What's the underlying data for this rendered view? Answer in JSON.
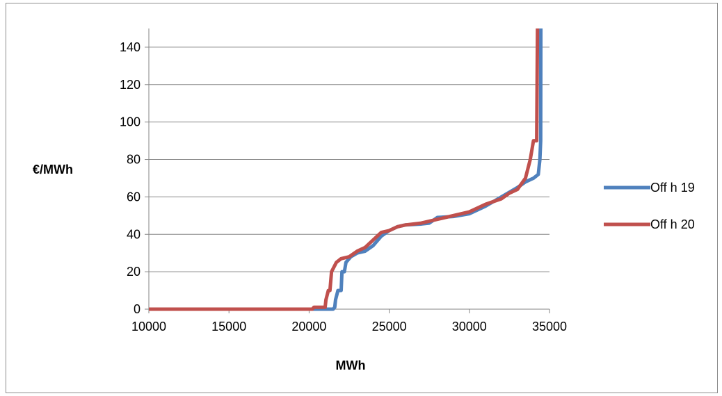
{
  "chart_data": {
    "type": "line",
    "title": "",
    "xlabel": "MWh",
    "ylabel": "€/MWh",
    "xlim": [
      10000,
      35000
    ],
    "ylim": [
      0,
      150
    ],
    "x_ticks": [
      "10000",
      "15000",
      "20000",
      "25000",
      "30000",
      "35000"
    ],
    "y_ticks": [
      "0",
      "20",
      "40",
      "60",
      "80",
      "100",
      "120",
      "140"
    ],
    "grid": "horizontal",
    "legend_position": "right",
    "series": [
      {
        "name": "Off h 19",
        "color": "#4f81bd",
        "points": [
          [
            10000,
            0
          ],
          [
            21500,
            0
          ],
          [
            21600,
            1
          ],
          [
            21650,
            5
          ],
          [
            21800,
            10
          ],
          [
            22000,
            10
          ],
          [
            22050,
            20
          ],
          [
            22200,
            20
          ],
          [
            22300,
            25
          ],
          [
            22600,
            28
          ],
          [
            23000,
            30
          ],
          [
            23500,
            31
          ],
          [
            24000,
            34
          ],
          [
            24500,
            39
          ],
          [
            25000,
            42
          ],
          [
            25500,
            44
          ],
          [
            26000,
            45
          ],
          [
            27000,
            45.5
          ],
          [
            27500,
            46
          ],
          [
            28000,
            49
          ],
          [
            29000,
            49.5
          ],
          [
            30000,
            51
          ],
          [
            31000,
            55
          ],
          [
            32000,
            60
          ],
          [
            33000,
            65
          ],
          [
            33500,
            68
          ],
          [
            34000,
            70
          ],
          [
            34300,
            72
          ],
          [
            34400,
            80
          ],
          [
            34450,
            90
          ],
          [
            34460,
            150
          ]
        ]
      },
      {
        "name": "Off h 20",
        "color": "#c0504d",
        "points": [
          [
            10000,
            0
          ],
          [
            20200,
            0
          ],
          [
            20300,
            1
          ],
          [
            21000,
            1
          ],
          [
            21050,
            5
          ],
          [
            21200,
            10
          ],
          [
            21300,
            10
          ],
          [
            21400,
            20
          ],
          [
            21700,
            25
          ],
          [
            22000,
            27
          ],
          [
            22500,
            28
          ],
          [
            23000,
            31
          ],
          [
            23500,
            33
          ],
          [
            24000,
            37
          ],
          [
            24500,
            41
          ],
          [
            25000,
            42
          ],
          [
            25500,
            44
          ],
          [
            26000,
            45
          ],
          [
            27000,
            46
          ],
          [
            28000,
            48
          ],
          [
            29000,
            50
          ],
          [
            30000,
            52
          ],
          [
            31000,
            56
          ],
          [
            32000,
            59
          ],
          [
            32500,
            62
          ],
          [
            33000,
            64
          ],
          [
            33500,
            70
          ],
          [
            33800,
            80
          ],
          [
            34000,
            90
          ],
          [
            34200,
            90
          ],
          [
            34250,
            150
          ]
        ]
      }
    ]
  }
}
